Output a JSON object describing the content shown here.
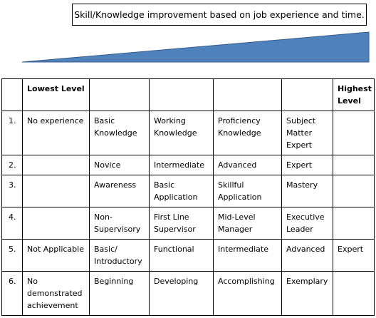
{
  "caption": "Skill/Knowledge improvement based on job experience and time.",
  "colors": {
    "wedge": "#4f81bd",
    "wedge_border": "#385d8a"
  },
  "header": [
    "",
    "Lowest Level",
    "",
    "",
    "",
    "",
    "Highest Level"
  ],
  "rows": [
    [
      "1.",
      "No experience",
      "Basic Knowledge",
      "Working Knowledge",
      "Proficiency Knowledge",
      "Subject Matter Expert",
      ""
    ],
    [
      "2.",
      "",
      "Novice",
      "Intermediate",
      "Advanced",
      "Expert",
      ""
    ],
    [
      "3.",
      "",
      "Awareness",
      "Basic Application",
      "Skillful Application",
      "Mastery",
      ""
    ],
    [
      "4.",
      "",
      "Non-Supervisory",
      "First Line Supervisor",
      "Mid-Level Manager",
      "Executive Leader",
      ""
    ],
    [
      "5.",
      "Not Applicable",
      "Basic/ Introductory",
      "Functional",
      "Intermediate",
      "Advanced",
      "Expert"
    ],
    [
      "6.",
      "No demonstrated achievement",
      "Beginning",
      "Developing",
      "Accomplishing",
      "Exemplary",
      ""
    ]
  ]
}
